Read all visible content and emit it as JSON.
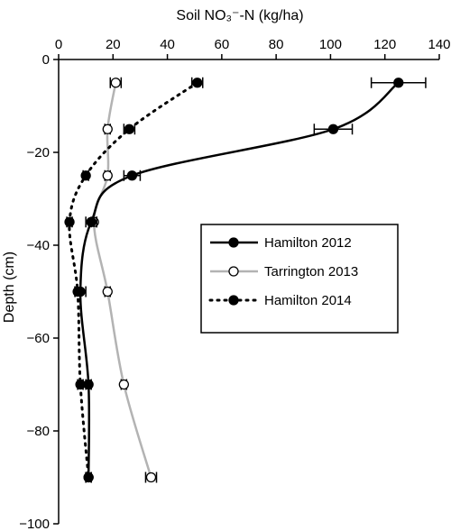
{
  "chart_data": {
    "type": "line",
    "xlabel": "Soil NO₃⁻-N (kg/ha)",
    "ylabel": "Depth (cm)",
    "xlim": [
      0,
      140
    ],
    "ylim": [
      -100,
      0
    ],
    "x_axis_position": "top",
    "x_ticks": [
      0,
      20,
      40,
      60,
      80,
      100,
      120,
      140
    ],
    "y_ticks": [
      0,
      -20,
      -40,
      -60,
      -80,
      -100
    ],
    "legend_position": "center-right",
    "grid": false,
    "series": [
      {
        "name": "Hamilton 2012",
        "color": "#000000",
        "line_style": "solid",
        "marker": "filled-circle",
        "points": [
          {
            "x": 125,
            "y": -5,
            "err": 10
          },
          {
            "x": 101,
            "y": -15,
            "err": 7
          },
          {
            "x": 27,
            "y": -25,
            "err": 3
          },
          {
            "x": 12,
            "y": -35,
            "err": 2
          },
          {
            "x": 8,
            "y": -50,
            "err": 2
          },
          {
            "x": 11,
            "y": -70,
            "err": 1
          },
          {
            "x": 11,
            "y": -90,
            "err": 1
          }
        ]
      },
      {
        "name": "Tarrington 2013",
        "color": "#b3b3b3",
        "line_style": "solid",
        "marker": "open-circle",
        "points": [
          {
            "x": 21,
            "y": -5,
            "err": 2
          },
          {
            "x": 18,
            "y": -15,
            "err": 1
          },
          {
            "x": 18,
            "y": -25,
            "err": 1
          },
          {
            "x": 13,
            "y": -35,
            "err": 1
          },
          {
            "x": 18,
            "y": -50,
            "err": 1
          },
          {
            "x": 24,
            "y": -70,
            "err": 1
          },
          {
            "x": 34,
            "y": -90,
            "err": 2
          }
        ]
      },
      {
        "name": "Hamilton 2014",
        "color": "#000000",
        "line_style": "dotted",
        "marker": "filled-circle",
        "points": [
          {
            "x": 51,
            "y": -5,
            "err": 2
          },
          {
            "x": 26,
            "y": -15,
            "err": 2
          },
          {
            "x": 10,
            "y": -25,
            "err": 1
          },
          {
            "x": 4,
            "y": -35,
            "err": 1
          },
          {
            "x": 7,
            "y": -50,
            "err": 1
          },
          {
            "x": 8,
            "y": -70,
            "err": 1
          },
          {
            "x": 11,
            "y": -90,
            "err": 1
          }
        ]
      }
    ]
  }
}
